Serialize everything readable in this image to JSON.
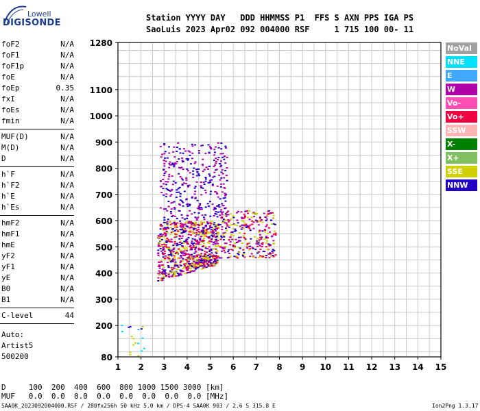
{
  "logo": {
    "line1": "Lowell",
    "line2": "DIGISONDE"
  },
  "header": {
    "line1": "Station YYYY DAY   DDD HHMMSS P1  FFS S AXN PPS IGA PS",
    "line2": "SaoLuis 2023 Apr02 092 004000 RSF     1 715 100 00- 11"
  },
  "params": {
    "group1": [
      {
        "name": "foF2",
        "value": "N/A"
      },
      {
        "name": "foF1",
        "value": "N/A"
      },
      {
        "name": "foF1p",
        "value": "N/A"
      },
      {
        "name": "foE",
        "value": "N/A"
      },
      {
        "name": "foEp",
        "value": "0.35"
      },
      {
        "name": "fxI",
        "value": "N/A"
      },
      {
        "name": "foEs",
        "value": "N/A"
      },
      {
        "name": "fmin",
        "value": "N/A"
      }
    ],
    "group2": [
      {
        "name": "MUF(D)",
        "value": "N/A"
      },
      {
        "name": "M(D)",
        "value": "N/A"
      },
      {
        "name": "D",
        "value": "N/A"
      }
    ],
    "group3": [
      {
        "name": "h`F",
        "value": "N/A"
      },
      {
        "name": "h`F2",
        "value": "N/A"
      },
      {
        "name": "h`E",
        "value": "N/A"
      },
      {
        "name": "h`Es",
        "value": "N/A"
      }
    ],
    "group4": [
      {
        "name": "hmF2",
        "value": "N/A"
      },
      {
        "name": "hmF1",
        "value": "N/A"
      },
      {
        "name": "hmE",
        "value": "N/A"
      },
      {
        "name": "yF2",
        "value": "N/A"
      },
      {
        "name": "yF1",
        "value": "N/A"
      },
      {
        "name": "yE",
        "value": "N/A"
      },
      {
        "name": "B0",
        "value": "N/A"
      },
      {
        "name": "B1",
        "value": "N/A"
      }
    ],
    "clevel": {
      "name": "C-level",
      "value": "44"
    }
  },
  "auto": {
    "line1": "Auto:",
    "line2": "Artist5",
    "line3": "500200"
  },
  "legend": [
    {
      "label": "NoVal",
      "color": "#a0a0a0"
    },
    {
      "label": "NNE",
      "color": "#00e0ff"
    },
    {
      "label": "E",
      "color": "#40a8ff"
    },
    {
      "label": "W",
      "color": "#b000a8"
    },
    {
      "label": "Vo-",
      "color": "#ff4fb4"
    },
    {
      "label": "Vo+",
      "color": "#f00040"
    },
    {
      "label": "SSW",
      "color": "#ffb4b4"
    },
    {
      "label": "X-",
      "color": "#008000"
    },
    {
      "label": "X+",
      "color": "#80c060"
    },
    {
      "label": "SSE",
      "color": "#d0d000"
    },
    {
      "label": "NNW",
      "color": "#2000c0"
    }
  ],
  "bottom": {
    "d_row": "D     100  200  400  600  800 1000 1500 3000 [km]",
    "muf_row": "MUF   0.0  0.0  0.0  0.0  0.0  0.0  0.0  0.0 [MHz]"
  },
  "footer": {
    "left": "SAA0K_2023092004000.RSF / 280fx256h 50 kHz 5.0 km / DPS-4 SAA0K 903 / 2.6 S 315.8 E",
    "right": "Ion2Png 1.3.17"
  },
  "chart_data": {
    "type": "scatter",
    "title": "",
    "xlabel": "",
    "ylabel": "",
    "xlim": [
      1,
      15
    ],
    "ylim": [
      80,
      1280
    ],
    "x_ticks": [
      1,
      2,
      3,
      4,
      5,
      6,
      7,
      8,
      9,
      10,
      11,
      12,
      13,
      14,
      15
    ],
    "y_ticks": [
      80,
      200,
      300,
      400,
      500,
      600,
      700,
      800,
      900,
      1000,
      1100,
      1280
    ],
    "grid": true,
    "regions": [
      {
        "name": "F-trace main cluster",
        "x_range": [
          2.7,
          5.3
        ],
        "y_range": [
          370,
          600
        ],
        "dominant": [
          "NNW",
          "W",
          "Vo+",
          "SSE"
        ]
      },
      {
        "name": "F-trace upper spread",
        "x_range": [
          2.8,
          5.7
        ],
        "y_range": [
          600,
          900
        ],
        "dominant": [
          "W",
          "NNW"
        ]
      },
      {
        "name": "F-trace high-frequency tail",
        "x_range": [
          5.3,
          7.8
        ],
        "y_range": [
          460,
          640
        ],
        "dominant": [
          "SSE",
          "Vo+",
          "W",
          "NNW"
        ]
      },
      {
        "name": "low-frequency near-ground echoes",
        "x_range": [
          1.1,
          2.1
        ],
        "y_range": [
          80,
          210
        ],
        "dominant": [
          "NNW",
          "E",
          "NNE",
          "SSE"
        ]
      }
    ]
  }
}
